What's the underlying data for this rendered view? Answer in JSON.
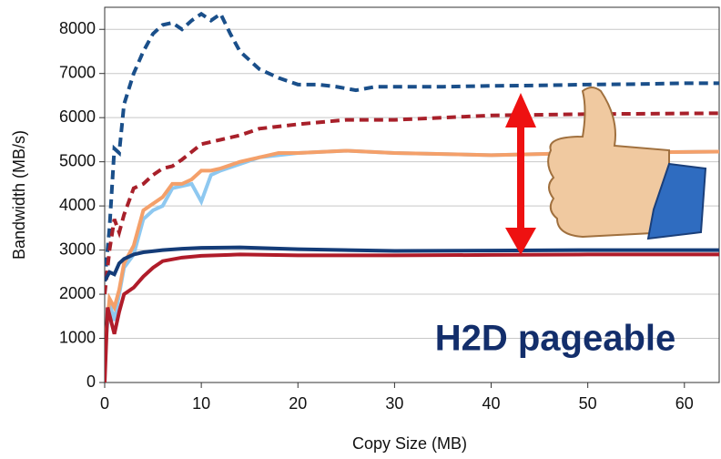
{
  "chart_data": {
    "type": "line",
    "xlabel": "Copy Size (MB)",
    "ylabel": "Bandwidth (MB/s)",
    "annotation": "H2D pageable",
    "xlim": [
      0,
      63.6
    ],
    "ylim": [
      0,
      8500
    ],
    "xticks": [
      0,
      10,
      20,
      30,
      40,
      50,
      60
    ],
    "yticks": [
      0,
      1000,
      2000,
      3000,
      4000,
      5000,
      6000,
      7000,
      8000
    ],
    "grid": true,
    "series": [
      {
        "color": "#1a4f8a",
        "dash": true,
        "x": [
          0,
          0.5,
          1,
          1.5,
          2,
          3,
          4,
          5,
          6,
          7,
          8,
          9,
          10,
          11,
          12,
          13,
          14,
          16,
          18,
          20,
          22,
          24,
          26,
          28,
          30,
          35,
          40,
          45,
          50,
          55,
          60,
          63.6
        ],
        "values": [
          2300,
          3500,
          5300,
          5200,
          6300,
          7000,
          7500,
          7900,
          8100,
          8150,
          8000,
          8200,
          8350,
          8200,
          8350,
          7900,
          7500,
          7100,
          6900,
          6750,
          6750,
          6700,
          6620,
          6700,
          6700,
          6700,
          6720,
          6730,
          6750,
          6760,
          6780,
          6780
        ]
      },
      {
        "color": "#a8202a",
        "dash": true,
        "x": [
          0,
          0.5,
          1,
          1.5,
          2,
          3,
          4,
          5,
          6,
          7,
          8,
          10,
          12,
          14,
          16,
          18,
          20,
          25,
          30,
          40,
          50,
          63.6
        ],
        "values": [
          2000,
          3000,
          3700,
          3400,
          3800,
          4400,
          4500,
          4700,
          4850,
          4900,
          5050,
          5400,
          5500,
          5600,
          5750,
          5800,
          5850,
          5950,
          5950,
          6050,
          6080,
          6100
        ]
      },
      {
        "color": "#8ec8f0",
        "dash": false,
        "x": [
          0,
          0.5,
          1,
          1.5,
          2,
          3,
          4,
          5,
          6,
          7,
          8,
          9,
          10,
          11,
          12,
          14,
          16,
          18,
          20,
          25,
          30,
          40,
          50,
          63.6
        ],
        "values": [
          700,
          1800,
          1400,
          2000,
          2600,
          2900,
          3700,
          3900,
          4000,
          4400,
          4450,
          4500,
          4100,
          4700,
          4800,
          4950,
          5100,
          5150,
          5200,
          5250,
          5200,
          5150,
          5200,
          5230
        ]
      },
      {
        "color": "#f4a06a",
        "dash": false,
        "x": [
          0,
          0.5,
          1,
          1.5,
          2,
          3,
          4,
          5,
          6,
          7,
          8,
          9,
          10,
          11,
          12,
          14,
          16,
          18,
          20,
          25,
          30,
          40,
          50,
          63.6
        ],
        "values": [
          800,
          1900,
          1700,
          2100,
          2700,
          3100,
          3900,
          4050,
          4200,
          4500,
          4500,
          4600,
          4800,
          4800,
          4850,
          5000,
          5100,
          5200,
          5200,
          5250,
          5200,
          5150,
          5200,
          5230
        ]
      },
      {
        "color": "#143c78",
        "dash": false,
        "x": [
          0,
          0.5,
          1,
          1.5,
          2,
          3,
          4,
          6,
          8,
          10,
          14,
          20,
          30,
          40,
          50,
          63.6
        ],
        "values": [
          2300,
          2500,
          2450,
          2700,
          2800,
          2900,
          2950,
          3000,
          3030,
          3050,
          3060,
          3020,
          2980,
          2990,
          3000,
          3000
        ]
      },
      {
        "color": "#b01c2a",
        "dash": false,
        "x": [
          0,
          0.3,
          1,
          1.5,
          2,
          3,
          4,
          5,
          6,
          8,
          10,
          14,
          20,
          30,
          40,
          50,
          63.6
        ],
        "values": [
          0,
          1700,
          1100,
          1600,
          2000,
          2150,
          2400,
          2600,
          2750,
          2830,
          2870,
          2900,
          2880,
          2880,
          2890,
          2900,
          2900
        ]
      }
    ]
  }
}
